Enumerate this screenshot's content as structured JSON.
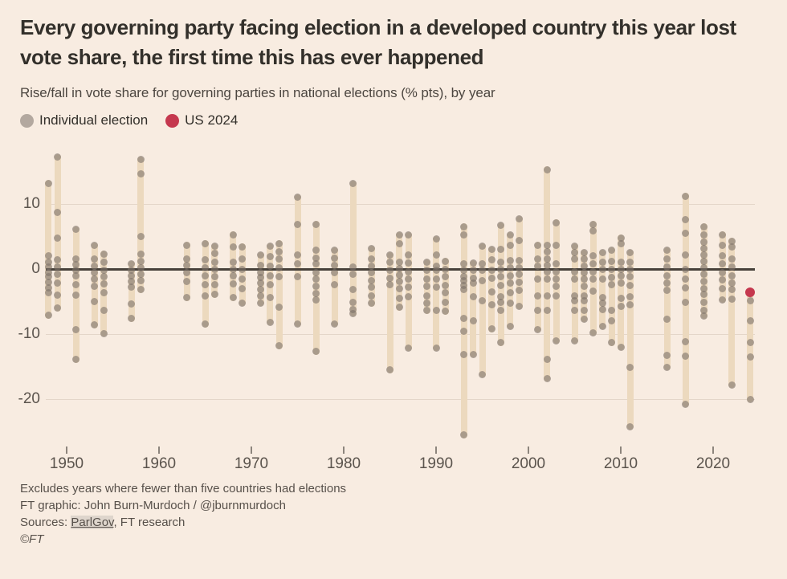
{
  "header": {
    "title_line1": "Every governing party facing election in a developed country this year lost",
    "title_line2": "vote share, the first time this has ever happened",
    "subtitle": "Rise/fall in vote share for governing parties in national elections (% pts), by year"
  },
  "legend": {
    "individual": "Individual election",
    "us2024": "US 2024"
  },
  "colors": {
    "background": "#f8ece1",
    "range_band": "#ecd9be",
    "election_dot": "#7d7269",
    "us_2024_red": "#c5384e",
    "zero_line": "#47413a",
    "gridline": "#e4d6c9",
    "title_text": "#33302b",
    "axis_text": "#5b544d"
  },
  "chart_data": {
    "type": "scatter",
    "title": "Every governing party facing election in a developed country this year lost vote share, the first time this has ever happened",
    "subtitle": "Rise/fall in vote share for governing parties in national elections (% pts), by year",
    "legend": [
      {
        "label": "Individual election",
        "color": "#b3a89f"
      },
      {
        "label": "US 2024",
        "color": "#c5384e"
      }
    ],
    "legend_position": "top-left",
    "grid": "horizontal",
    "xlabel": "",
    "ylabel": "",
    "y_ticks": [
      10,
      0,
      -10,
      -20
    ],
    "x_ticks": [
      1950,
      1960,
      1970,
      1980,
      1990,
      2000,
      2010,
      2020
    ],
    "ylim": [
      -26.5,
      18
    ],
    "xlim": [
      1946.5,
      2025.5
    ],
    "series": [
      {
        "year": 1948,
        "values": [
          13.2,
          2.0,
          1.0,
          0.3,
          -0.5,
          -1.2,
          -2.0,
          -2.9,
          -3.6,
          -7.1
        ]
      },
      {
        "year": 1949,
        "values": [
          17.2,
          8.7,
          4.7,
          1.4,
          0.3,
          -0.8,
          -2.2,
          -4.0,
          -6.0
        ]
      },
      {
        "year": 1951,
        "values": [
          6.1,
          1.6,
          0.7,
          -0.2,
          -1.0,
          -2.4,
          -4.0,
          -9.3,
          -13.9
        ]
      },
      {
        "year": 1953,
        "values": [
          3.6,
          1.5,
          0.4,
          -0.6,
          -1.5,
          -2.7,
          -5.0,
          -8.6
        ]
      },
      {
        "year": 1954,
        "values": [
          2.3,
          1.0,
          -0.2,
          -1.2,
          -2.3,
          -3.6,
          -6.4,
          -9.9
        ]
      },
      {
        "year": 1957,
        "values": [
          0.8,
          -0.2,
          -1.0,
          -1.9,
          -2.8,
          -5.4,
          -7.6
        ]
      },
      {
        "year": 1958,
        "values": [
          16.8,
          14.6,
          5.0,
          2.3,
          1.2,
          0.2,
          -0.8,
          -1.8,
          -3.2
        ]
      },
      {
        "year": 1963,
        "values": [
          3.7,
          1.6,
          0.5,
          -0.6,
          -1.9,
          -4.4
        ]
      },
      {
        "year": 1965,
        "values": [
          3.9,
          1.4,
          0.2,
          -1.1,
          -2.4,
          -4.1,
          -8.5
        ]
      },
      {
        "year": 1966,
        "values": [
          3.5,
          2.4,
          1.0,
          -0.1,
          -1.2,
          -2.4,
          -3.9
        ]
      },
      {
        "year": 1968,
        "values": [
          5.3,
          3.4,
          1.1,
          0.0,
          -1.1,
          -2.3,
          -4.4
        ]
      },
      {
        "year": 1969,
        "values": [
          3.4,
          1.5,
          -0.1,
          -1.6,
          -3.0,
          -5.2
        ]
      },
      {
        "year": 1971,
        "values": [
          2.1,
          0.6,
          -0.5,
          -1.3,
          -2.1,
          -3.1,
          -4.1,
          -5.2
        ]
      },
      {
        "year": 1972,
        "values": [
          3.5,
          1.9,
          0.4,
          -1.0,
          -2.4,
          -4.4,
          -8.2
        ]
      },
      {
        "year": 1973,
        "values": [
          3.9,
          2.7,
          1.5,
          0.2,
          -1.2,
          -5.9,
          -11.8
        ]
      },
      {
        "year": 1975,
        "values": [
          11.0,
          6.9,
          2.1,
          0.8,
          -1.2,
          -8.4
        ]
      },
      {
        "year": 1977,
        "values": [
          6.9,
          2.9,
          1.7,
          0.8,
          -0.6,
          -1.6,
          -2.7,
          -3.8,
          -4.7,
          -12.7
        ]
      },
      {
        "year": 1979,
        "values": [
          2.9,
          1.7,
          0.6,
          -0.6,
          -2.4,
          -8.4
        ]
      },
      {
        "year": 1981,
        "values": [
          13.1,
          0.3,
          -0.8,
          -3.1,
          -5.1,
          -6.2,
          -6.8
        ]
      },
      {
        "year": 1983,
        "values": [
          3.1,
          1.6,
          0.4,
          -0.6,
          -1.8,
          -2.8,
          -4.1,
          -5.3
        ]
      },
      {
        "year": 1985,
        "values": [
          2.1,
          1.0,
          -0.2,
          -1.4,
          -2.4,
          -15.5
        ]
      },
      {
        "year": 1986,
        "values": [
          5.2,
          3.9,
          1.1,
          0.1,
          -0.9,
          -1.9,
          -3.0,
          -4.5,
          -5.9
        ]
      },
      {
        "year": 1987,
        "values": [
          5.2,
          2.1,
          0.9,
          -0.4,
          -1.6,
          -2.8,
          -4.3,
          -12.1
        ]
      },
      {
        "year": 1989,
        "values": [
          1.0,
          -0.2,
          -1.5,
          -2.7,
          -4.1,
          -5.2,
          -6.4
        ]
      },
      {
        "year": 1990,
        "values": [
          4.6,
          2.1,
          0.4,
          -0.2,
          -1.6,
          -2.8,
          -6.4,
          -12.1
        ]
      },
      {
        "year": 1991,
        "values": [
          1.2,
          0.0,
          -1.2,
          -2.5,
          -3.6,
          -5.1,
          -6.5
        ]
      },
      {
        "year": 1993,
        "values": [
          6.5,
          5.3,
          0.8,
          -0.2,
          -1.2,
          -1.8,
          -2.5,
          -3.1,
          -7.6,
          -9.6,
          -13.1,
          -25.5
        ]
      },
      {
        "year": 1994,
        "values": [
          0.9,
          -0.2,
          -1.4,
          -2.2,
          -4.3,
          -8.0,
          -13.1
        ]
      },
      {
        "year": 1995,
        "values": [
          3.5,
          0.8,
          -0.2,
          -1.8,
          -4.9,
          -16.2
        ]
      },
      {
        "year": 1996,
        "values": [
          3.0,
          1.4,
          -0.2,
          -1.4,
          -3.5,
          -5.5,
          -9.2
        ]
      },
      {
        "year": 1997,
        "values": [
          6.7,
          3.0,
          1.1,
          0.0,
          -1.2,
          -2.5,
          -4.3,
          -5.1,
          -6.3,
          -11.3
        ]
      },
      {
        "year": 1998,
        "values": [
          5.2,
          3.7,
          1.3,
          0.2,
          -1.0,
          -2.2,
          -3.6,
          -5.3,
          -8.8
        ]
      },
      {
        "year": 1999,
        "values": [
          7.7,
          4.4,
          1.3,
          0.2,
          -0.8,
          -2.0,
          -3.3,
          -5.7
        ]
      },
      {
        "year": 2001,
        "values": [
          3.7,
          1.5,
          0.4,
          -1.6,
          -4.1,
          -6.4,
          -9.3
        ]
      },
      {
        "year": 2002,
        "values": [
          15.3,
          3.7,
          2.7,
          1.6,
          0.6,
          -0.4,
          -1.6,
          -4.1,
          -6.4,
          -13.9,
          -16.8
        ]
      },
      {
        "year": 2003,
        "values": [
          7.1,
          3.7,
          0.8,
          -0.4,
          -1.6,
          -2.6,
          -4.1,
          -11.0
        ]
      },
      {
        "year": 2005,
        "values": [
          3.5,
          2.5,
          1.5,
          -0.4,
          -1.6,
          -4.1,
          -4.9,
          -6.4,
          -11.0
        ]
      },
      {
        "year": 2006,
        "values": [
          2.5,
          1.5,
          0.4,
          -0.6,
          -1.6,
          -2.6,
          -4.1,
          -4.9,
          -6.4,
          -7.7
        ]
      },
      {
        "year": 2007,
        "values": [
          6.9,
          5.9,
          2.0,
          0.8,
          -0.4,
          -1.5,
          -3.4,
          -9.8
        ]
      },
      {
        "year": 2008,
        "values": [
          2.5,
          1.1,
          0.0,
          -1.5,
          -4.4,
          -5.3,
          -6.2,
          -8.8
        ]
      },
      {
        "year": 2009,
        "values": [
          2.9,
          1.2,
          0.0,
          -1.3,
          -2.4,
          -6.3,
          -8.0,
          -11.3
        ]
      },
      {
        "year": 2010,
        "values": [
          4.8,
          3.9,
          1.1,
          0.0,
          -1.1,
          -2.2,
          -4.5,
          -5.7,
          -12.0
        ]
      },
      {
        "year": 2011,
        "values": [
          2.5,
          1.1,
          0.0,
          -1.2,
          -2.5,
          -4.2,
          -5.5,
          -15.1,
          -24.2
        ]
      },
      {
        "year": 2015,
        "values": [
          2.9,
          1.5,
          0.3,
          -1.0,
          -2.2,
          -3.3,
          -7.7,
          -13.3,
          -15.1
        ]
      },
      {
        "year": 2017,
        "values": [
          11.2,
          7.6,
          5.5,
          2.2,
          -0.1,
          -1.6,
          -2.9,
          -5.1,
          -11.2,
          -13.4,
          -20.8
        ]
      },
      {
        "year": 2019,
        "values": [
          6.5,
          5.3,
          4.1,
          3.1,
          2.2,
          1.2,
          0.2,
          -0.8,
          -1.9,
          -3.0,
          -3.9,
          -5.1,
          -6.4,
          -7.2
        ]
      },
      {
        "year": 2021,
        "values": [
          5.3,
          3.7,
          2.0,
          0.8,
          -0.5,
          -1.7,
          -3.0,
          -4.7
        ]
      },
      {
        "year": 2022,
        "values": [
          4.3,
          3.4,
          1.5,
          0.3,
          -1.0,
          -2.1,
          -3.2,
          -4.6,
          -17.8
        ]
      },
      {
        "year": 2024,
        "values": [
          -4.9,
          -8.0,
          -11.3,
          -13.5,
          -20.0
        ]
      }
    ],
    "us_2024": {
      "year": 2024,
      "value": -3.6
    }
  },
  "footer": {
    "note": "Excludes years where fewer than five countries had elections",
    "credit": "FT graphic: John Burn-Murdoch / @jburnmurdoch",
    "sources_prefix": "Sources: ",
    "source_link": "ParlGov",
    "sources_suffix": ", FT research",
    "copyright": "©FT"
  }
}
